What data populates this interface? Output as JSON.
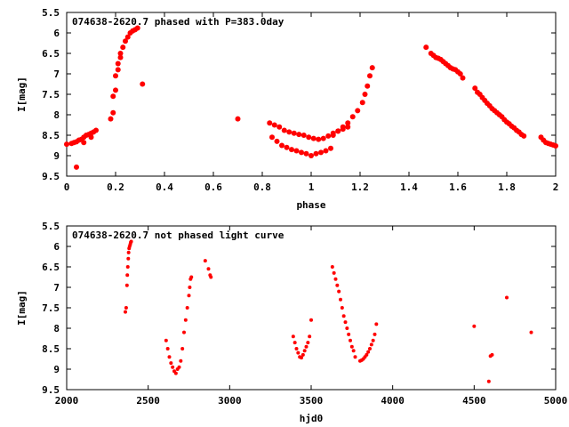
{
  "chart_data": [
    {
      "type": "scatter",
      "title": "074638-2620.7 phased with P=383.0day",
      "xlabel": "phase",
      "ylabel": "I[mag]",
      "xlim": [
        0,
        2
      ],
      "ylim": [
        9.5,
        5.5
      ],
      "y_inverted": true,
      "xticks": [
        "0",
        "0.2",
        "0.4",
        "0.6",
        "0.8",
        "1",
        "1.2",
        "1.4",
        "1.6",
        "1.8",
        "2"
      ],
      "yticks": [
        "5.5",
        "6",
        "6.5",
        "7",
        "7.5",
        "8",
        "8.5",
        "9",
        "9.5"
      ],
      "marker_color": "#ff0000",
      "series": [
        {
          "x": [
            0.0,
            0.02,
            0.03,
            0.04,
            0.05,
            0.06,
            0.07,
            0.08,
            0.09,
            0.1,
            0.11,
            0.12,
            0.04,
            0.07,
            0.1,
            0.18,
            0.19,
            0.19,
            0.2,
            0.2,
            0.21,
            0.21,
            0.22,
            0.22,
            0.23,
            0.24,
            0.25,
            0.26,
            0.27,
            0.28,
            0.29,
            0.31,
            0.7,
            0.83,
            0.85,
            0.87,
            0.89,
            0.91,
            0.93,
            0.95,
            0.97,
            0.99,
            1.01,
            1.03,
            1.05,
            1.07,
            1.09,
            1.11,
            1.13,
            1.15,
            0.84,
            0.86,
            0.88,
            0.9,
            0.92,
            0.94,
            0.96,
            0.98,
            1.0,
            1.02,
            1.04,
            1.06,
            1.08,
            1.09,
            1.11,
            1.13,
            1.15,
            1.17,
            1.19,
            1.21,
            1.22,
            1.23,
            1.24,
            1.25,
            1.47,
            1.49,
            1.5,
            1.51,
            1.52,
            1.53,
            1.54,
            1.55,
            1.56,
            1.57,
            1.58,
            1.59,
            1.6,
            1.61,
            1.62,
            1.67,
            1.68,
            1.69,
            1.7,
            1.71,
            1.72,
            1.73,
            1.74,
            1.75,
            1.76,
            1.77,
            1.78,
            1.79,
            1.8,
            1.81,
            1.82,
            1.83,
            1.84,
            1.85,
            1.86,
            1.87,
            1.94,
            1.95,
            1.96,
            1.97,
            1.98,
            1.99,
            2.0
          ],
          "y": [
            8.72,
            8.7,
            8.68,
            8.66,
            8.62,
            8.6,
            8.55,
            8.5,
            8.48,
            8.45,
            8.42,
            8.38,
            9.28,
            8.68,
            8.55,
            8.1,
            7.95,
            7.55,
            7.4,
            7.05,
            6.9,
            6.75,
            6.6,
            6.5,
            6.35,
            6.2,
            6.1,
            6.0,
            5.95,
            5.92,
            5.88,
            7.25,
            8.1,
            8.2,
            8.25,
            8.3,
            8.38,
            8.42,
            8.45,
            8.48,
            8.5,
            8.55,
            8.58,
            8.6,
            8.58,
            8.52,
            8.45,
            8.4,
            8.35,
            8.3,
            8.55,
            8.65,
            8.75,
            8.8,
            8.85,
            8.88,
            8.92,
            8.95,
            9.0,
            8.95,
            8.92,
            8.88,
            8.82,
            8.5,
            8.4,
            8.3,
            8.2,
            8.05,
            7.9,
            7.7,
            7.5,
            7.3,
            7.05,
            6.85,
            6.35,
            6.5,
            6.55,
            6.6,
            6.62,
            6.65,
            6.7,
            6.75,
            6.8,
            6.85,
            6.88,
            6.9,
            6.95,
            7.0,
            7.1,
            7.35,
            7.45,
            7.5,
            7.58,
            7.65,
            7.72,
            7.78,
            7.85,
            7.9,
            7.95,
            8.0,
            8.05,
            8.12,
            8.18,
            8.22,
            8.28,
            8.32,
            8.38,
            8.42,
            8.48,
            8.52,
            8.55,
            8.62,
            8.68,
            8.7,
            8.72,
            8.74,
            8.76
          ]
        }
      ],
      "grid": false
    },
    {
      "type": "scatter",
      "title": "074638-2620.7 not phased light curve",
      "xlabel": "hjd0",
      "ylabel": "I[mag]",
      "xlim": [
        2000,
        5000
      ],
      "ylim": [
        9.5,
        5.5
      ],
      "y_inverted": true,
      "xticks": [
        "2000",
        "2500",
        "3000",
        "3500",
        "4000",
        "4500",
        "5000"
      ],
      "yticks": [
        "5.5",
        "6",
        "6.5",
        "7",
        "7.5",
        "8",
        "8.5",
        "9",
        "9.5"
      ],
      "marker_color": "#ff0000",
      "series": [
        {
          "x": [
            2360,
            2365,
            2370,
            2372,
            2375,
            2378,
            2380,
            2383,
            2386,
            2390,
            2393,
            2396,
            2610,
            2620,
            2630,
            2640,
            2650,
            2660,
            2670,
            2680,
            2690,
            2700,
            2710,
            2720,
            2730,
            2740,
            2750,
            2755,
            2760,
            2765,
            2850,
            2870,
            2880,
            2885,
            3390,
            3400,
            3410,
            3420,
            3430,
            3440,
            3450,
            3460,
            3470,
            3480,
            3490,
            3500,
            3630,
            3640,
            3650,
            3660,
            3670,
            3680,
            3690,
            3700,
            3710,
            3720,
            3730,
            3740,
            3750,
            3760,
            3770,
            3800,
            3810,
            3820,
            3830,
            3840,
            3850,
            3860,
            3870,
            3880,
            3890,
            3900,
            4500,
            4590,
            4600,
            4610,
            4700,
            4850
          ],
          "y": [
            7.6,
            7.5,
            6.95,
            6.7,
            6.5,
            6.3,
            6.15,
            6.05,
            6.0,
            5.95,
            5.9,
            5.88,
            8.3,
            8.5,
            8.7,
            8.85,
            8.95,
            9.05,
            9.1,
            9.0,
            8.95,
            8.8,
            8.5,
            8.1,
            7.8,
            7.5,
            7.2,
            7.0,
            6.8,
            6.75,
            6.35,
            6.55,
            6.7,
            6.75,
            8.2,
            8.35,
            8.5,
            8.6,
            8.7,
            8.72,
            8.65,
            8.55,
            8.45,
            8.35,
            8.2,
            7.8,
            6.5,
            6.65,
            6.8,
            6.95,
            7.1,
            7.3,
            7.5,
            7.7,
            7.85,
            8.0,
            8.15,
            8.3,
            8.45,
            8.55,
            8.7,
            8.8,
            8.78,
            8.75,
            8.7,
            8.65,
            8.58,
            8.5,
            8.4,
            8.3,
            8.15,
            7.9,
            7.95,
            9.3,
            8.68,
            8.65,
            7.25,
            8.1
          ]
        }
      ],
      "grid": false
    }
  ]
}
